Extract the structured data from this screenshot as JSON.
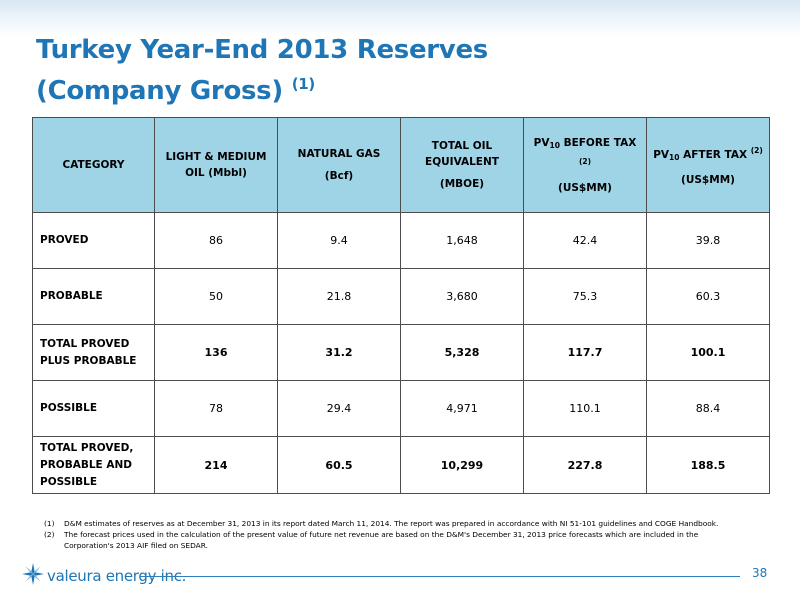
{
  "slide": {
    "title_line1": "Turkey Year-End 2013 Reserves",
    "title_line2": "(Company Gross)",
    "title_footnote_ref": "(1)",
    "page_number": "38"
  },
  "table": {
    "headers": {
      "category": "CATEGORY",
      "oil_line1": "LIGHT & MEDIUM",
      "oil_line2": "OIL (Mbbl)",
      "gas_line1": "NATURAL GAS",
      "gas_line2": "(Bcf)",
      "boe_line1": "TOTAL OIL",
      "boe_line2": "EQUIVALENT",
      "boe_line3": "(MBOE)",
      "pv_before_prefix": "PV",
      "pv_before_sub": "10",
      "pv_before_suffix": " BEFORE TAX ",
      "pv_before_ref": "(2)",
      "pv_before_units": "(US$MM)",
      "pv_after_prefix": "PV",
      "pv_after_sub": "10",
      "pv_after_suffix": " AFTER TAX ",
      "pv_after_ref": "(2)",
      "pv_after_units": "(US$MM)"
    },
    "rows": [
      {
        "category_line1": "PROVED",
        "category_line2": "",
        "category_line3": "",
        "oil": "86",
        "gas": "9.4",
        "boe": "1,648",
        "pv_before": "42.4",
        "pv_after": "39.8"
      },
      {
        "category_line1": "PROBABLE",
        "category_line2": "",
        "category_line3": "",
        "oil": "50",
        "gas": "21.8",
        "boe": "3,680",
        "pv_before": "75.3",
        "pv_after": "60.3"
      },
      {
        "category_line1": "TOTAL PROVED",
        "category_line2": "PLUS PROBABLE",
        "category_line3": "",
        "oil": "136",
        "gas": "31.2",
        "boe": "5,328",
        "pv_before": "117.7",
        "pv_after": "100.1"
      },
      {
        "category_line1": "POSSIBLE",
        "category_line2": "",
        "category_line3": "",
        "oil": "78",
        "gas": "29.4",
        "boe": "4,971",
        "pv_before": "110.1",
        "pv_after": "88.4"
      },
      {
        "category_line1": "TOTAL PROVED,",
        "category_line2": "PROBABLE AND",
        "category_line3": "POSSIBLE",
        "oil": "214",
        "gas": "60.5",
        "boe": "10,299",
        "pv_before": "227.8",
        "pv_after": "188.5"
      }
    ]
  },
  "footnotes": [
    {
      "marker": "(1)",
      "text": "D&M estimates of reserves as at December 31, 2013 in its report dated March 11, 2014. The report was prepared in accordance with NI 51-101 guidelines and COGE Handbook."
    },
    {
      "marker": "(2)",
      "text": "The forecast prices used in the calculation of the present value of future net revenue are based on the D&M's December 31, 2013 price forecasts which are included in the Corporation's 2013 AIF filed on SEDAR."
    }
  ],
  "logo": {
    "text": "valeura energy inc.",
    "icon": "valeura-star-logo-icon",
    "color": "#1f76b6"
  },
  "colors": {
    "title": "#1f76b6",
    "header_fill": "#9fd3e6",
    "rule": "#2f7fbd"
  }
}
